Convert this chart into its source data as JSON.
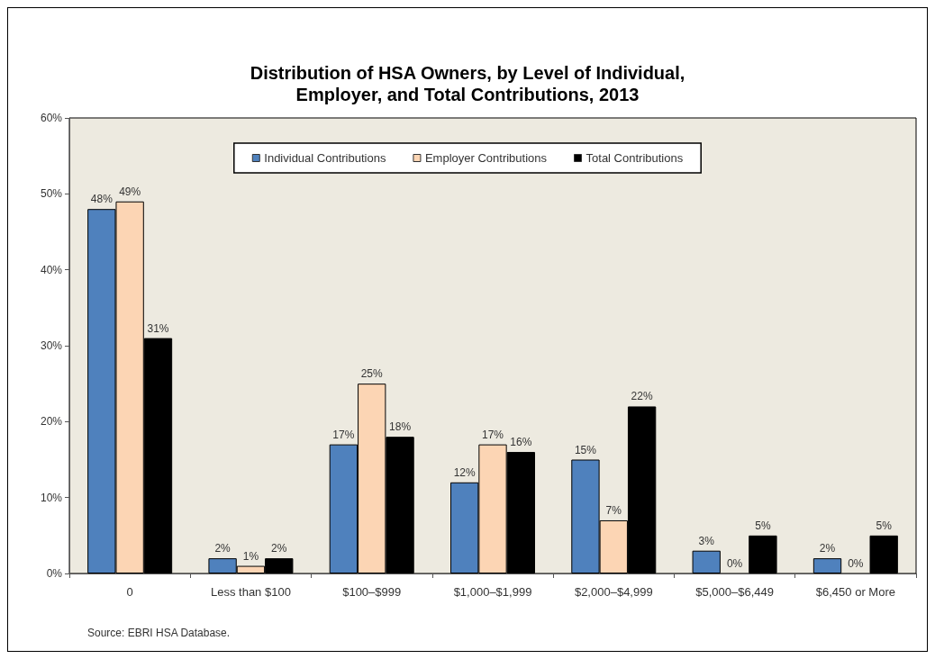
{
  "chart_data": {
    "type": "bar",
    "title": "Distribution of HSA Owners, by Level of Individual,\nEmployer, and Total Contributions, 2013",
    "categories": [
      "0",
      "Less than $100",
      "$100–$999",
      "$1,000–$1,999",
      "$2,000–$4,999",
      "$5,000–$6,449",
      "$6,450 or More"
    ],
    "series": [
      {
        "name": "Individual Contributions",
        "color": "#4f81bd",
        "values": [
          48,
          2,
          17,
          12,
          15,
          3,
          2
        ],
        "value_labels": [
          "48%",
          "2%",
          "17%",
          "12%",
          "15%",
          "3%",
          "2%"
        ]
      },
      {
        "name": "Employer Contributions",
        "color": "#fcd5b4",
        "values": [
          49,
          1,
          25,
          17,
          7,
          0,
          0
        ],
        "value_labels": [
          "49%",
          "1%",
          "25%",
          "17%",
          "7%",
          "0%",
          "0%"
        ]
      },
      {
        "name": "Total Contributions",
        "color": "#000000",
        "values": [
          31,
          2,
          18,
          16,
          22,
          5,
          5
        ],
        "value_labels": [
          "31%",
          "2%",
          "18%",
          "16%",
          "22%",
          "5%",
          "5%"
        ]
      }
    ],
    "ylim": [
      0,
      60
    ],
    "yticks": [
      {
        "value": 0,
        "label": "0%"
      },
      {
        "value": 10,
        "label": "10%"
      },
      {
        "value": 20,
        "label": "20%"
      },
      {
        "value": 30,
        "label": "30%"
      },
      {
        "value": 40,
        "label": "40%"
      },
      {
        "value": 50,
        "label": "50%"
      },
      {
        "value": 60,
        "label": "60%"
      }
    ],
    "grid": false,
    "legend": "top",
    "annotations": [
      "Source: EBRI HSA Database."
    ]
  }
}
